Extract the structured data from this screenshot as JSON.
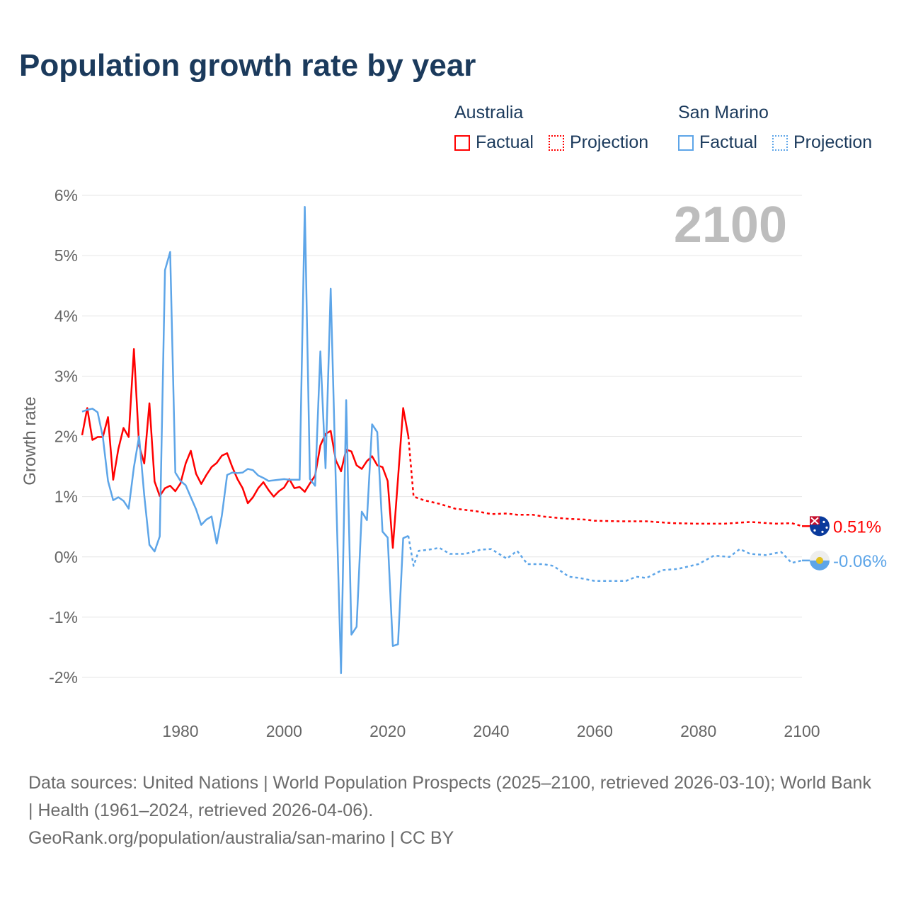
{
  "title": "Population growth rate by year",
  "legend": {
    "groups": [
      {
        "name": "Australia",
        "color": "#ff0000",
        "factual": "Factual",
        "projection": "Projection"
      },
      {
        "name": "San Marino",
        "color": "#5da5e8",
        "factual": "Factual",
        "projection": "Projection"
      }
    ]
  },
  "chart_data": {
    "type": "line",
    "title": "Population growth rate by year",
    "xlabel": "",
    "ylabel": "Growth rate",
    "xlim": [
      1961,
      2100
    ],
    "ylim": [
      -2,
      6
    ],
    "x_ticks": [
      "1980",
      "2000",
      "2020",
      "2040",
      "2060",
      "2080",
      "2100"
    ],
    "x_tick_values": [
      1980,
      2000,
      2020,
      2040,
      2060,
      2080,
      2100
    ],
    "y_ticks": [
      "-2%",
      "-1%",
      "0%",
      "1%",
      "2%",
      "3%",
      "4%",
      "5%",
      "6%"
    ],
    "y_tick_values": [
      -2,
      -1,
      0,
      1,
      2,
      3,
      4,
      5,
      6
    ],
    "year_marker": "2100",
    "grid": true,
    "series": [
      {
        "name": "Australia Factual",
        "color": "#ff0000",
        "style": "solid",
        "x": [
          1961,
          1962,
          1963,
          1964,
          1965,
          1966,
          1967,
          1968,
          1969,
          1970,
          1971,
          1972,
          1973,
          1974,
          1975,
          1976,
          1977,
          1978,
          1979,
          1980,
          1981,
          1982,
          1983,
          1984,
          1985,
          1986,
          1987,
          1988,
          1989,
          1990,
          1991,
          1992,
          1993,
          1994,
          1995,
          1996,
          1997,
          1998,
          1999,
          2000,
          2001,
          2002,
          2003,
          2004,
          2005,
          2006,
          2007,
          2008,
          2009,
          2010,
          2011,
          2012,
          2013,
          2014,
          2015,
          2016,
          2017,
          2018,
          2019,
          2020,
          2021,
          2022,
          2023,
          2024
        ],
        "y": [
          2.02,
          2.47,
          1.94,
          1.99,
          1.99,
          2.32,
          1.28,
          1.79,
          2.14,
          1.99,
          3.45,
          1.85,
          1.55,
          2.55,
          1.25,
          1.01,
          1.14,
          1.18,
          1.09,
          1.22,
          1.55,
          1.76,
          1.38,
          1.21,
          1.36,
          1.49,
          1.56,
          1.68,
          1.72,
          1.49,
          1.29,
          1.14,
          0.89,
          0.99,
          1.14,
          1.24,
          1.11,
          1.0,
          1.09,
          1.15,
          1.29,
          1.14,
          1.16,
          1.08,
          1.22,
          1.35,
          1.85,
          2.04,
          2.09,
          1.6,
          1.42,
          1.78,
          1.75,
          1.52,
          1.46,
          1.59,
          1.67,
          1.52,
          1.49,
          1.26,
          0.15,
          1.3,
          2.47,
          2.0
        ]
      },
      {
        "name": "Australia Projection",
        "color": "#ff0000",
        "style": "dotted",
        "x": [
          2024,
          2025,
          2026,
          2027,
          2028,
          2030,
          2033,
          2035,
          2037,
          2040,
          2043,
          2045,
          2048,
          2050,
          2055,
          2058,
          2060,
          2065,
          2070,
          2075,
          2080,
          2085,
          2090,
          2095,
          2098,
          2100
        ],
        "y": [
          2.0,
          1.0,
          0.97,
          0.94,
          0.92,
          0.88,
          0.8,
          0.78,
          0.76,
          0.71,
          0.72,
          0.7,
          0.7,
          0.67,
          0.63,
          0.62,
          0.6,
          0.59,
          0.59,
          0.56,
          0.55,
          0.55,
          0.58,
          0.55,
          0.56,
          0.51
        ]
      },
      {
        "name": "San Marino Factual",
        "color": "#5da5e8",
        "style": "solid",
        "x": [
          1961,
          1962,
          1963,
          1964,
          1965,
          1966,
          1967,
          1968,
          1969,
          1970,
          1971,
          1972,
          1973,
          1974,
          1975,
          1976,
          1977,
          1978,
          1979,
          1980,
          1981,
          1982,
          1983,
          1984,
          1985,
          1986,
          1987,
          1988,
          1989,
          1990,
          1991,
          1992,
          1993,
          1994,
          1995,
          1996,
          1997,
          1998,
          1999,
          2000,
          2001,
          2002,
          2003,
          2004,
          2005,
          2006,
          2007,
          2008,
          2009,
          2010,
          2011,
          2012,
          2013,
          2014,
          2015,
          2016,
          2017,
          2018,
          2019,
          2020,
          2021,
          2022,
          2023,
          2024
        ],
        "y": [
          2.41,
          2.44,
          2.46,
          2.4,
          1.99,
          1.26,
          0.94,
          0.99,
          0.93,
          0.8,
          1.49,
          2.0,
          1.02,
          0.2,
          0.09,
          0.34,
          4.76,
          5.06,
          1.4,
          1.26,
          1.19,
          0.99,
          0.79,
          0.53,
          0.62,
          0.67,
          0.22,
          0.69,
          1.36,
          1.4,
          1.39,
          1.4,
          1.46,
          1.44,
          1.35,
          1.31,
          1.26,
          1.27,
          1.28,
          1.29,
          1.28,
          1.28,
          1.28,
          5.81,
          1.29,
          1.18,
          3.41,
          1.47,
          4.45,
          1.2,
          -1.93,
          2.6,
          -1.29,
          -1.16,
          0.75,
          0.61,
          2.2,
          2.07,
          0.42,
          0.32,
          -1.48,
          -1.45,
          0.31,
          0.35
        ]
      },
      {
        "name": "San Marino Projection",
        "color": "#5da5e8",
        "style": "dotted",
        "x": [
          2024,
          2025,
          2026,
          2028,
          2030,
          2032,
          2035,
          2038,
          2040,
          2043,
          2045,
          2047,
          2050,
          2052,
          2055,
          2057,
          2060,
          2063,
          2066,
          2068,
          2070,
          2073,
          2076,
          2080,
          2083,
          2086,
          2088,
          2090,
          2093,
          2096,
          2098,
          2100
        ],
        "y": [
          0.35,
          -0.15,
          0.1,
          0.12,
          0.15,
          0.05,
          0.05,
          0.12,
          0.13,
          -0.03,
          0.1,
          -0.12,
          -0.12,
          -0.15,
          -0.33,
          -0.35,
          -0.4,
          -0.4,
          -0.4,
          -0.33,
          -0.35,
          -0.22,
          -0.2,
          -0.12,
          0.02,
          0.0,
          0.13,
          0.05,
          0.03,
          0.08,
          -0.1,
          -0.06
        ]
      }
    ],
    "end_labels": [
      {
        "country": "Australia",
        "value": "0.51%",
        "color": "#ff0000"
      },
      {
        "country": "San Marino",
        "value": "-0.06%",
        "color": "#5da5e8"
      }
    ]
  },
  "footer": {
    "sources": "Data sources: United Nations | World Population Prospects (2025–2100, retrieved 2026-03-10); World Bank | Health (1961–2024, retrieved 2026-04-06).",
    "link": "GeoRank.org/population/australia/san-marino | CC BY"
  }
}
